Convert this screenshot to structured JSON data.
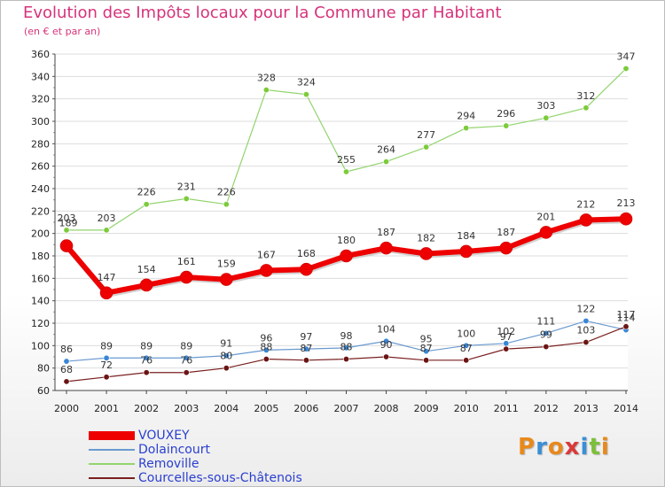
{
  "title": "Evolution des Impôts locaux pour la Commune par Habitant",
  "subtitle": "(en € et par an)",
  "logo": {
    "text": "Proxiti",
    "colors": [
      "#e8891c",
      "#3a8fd6",
      "#e8891c",
      "#d93a3a",
      "#3a8fd6",
      "#7cbf3a",
      "#e8891c"
    ]
  },
  "chart_data": {
    "type": "line",
    "title": "Evolution des Impôts locaux pour la Commune par Habitant",
    "subtitle": "(en € et par an)",
    "xlabel": "",
    "ylabel": "",
    "ylim": [
      60,
      360
    ],
    "yticks": [
      60,
      80,
      100,
      120,
      140,
      160,
      180,
      200,
      220,
      240,
      260,
      280,
      300,
      320,
      340,
      360
    ],
    "x": [
      "2000",
      "2001",
      "2002",
      "2003",
      "2004",
      "2005",
      "2006",
      "2007",
      "2008",
      "2009",
      "2010",
      "2011",
      "2012",
      "2013",
      "2014"
    ],
    "grid": "horizontal",
    "legend": "bottom-left",
    "series": [
      {
        "name": "VOUXEY",
        "color": "#ee0000",
        "values": [
          189,
          147,
          154,
          161,
          159,
          167,
          168,
          180,
          187,
          182,
          184,
          187,
          201,
          212,
          213
        ]
      },
      {
        "name": "Dolaincourt",
        "color": "#6a9ad0",
        "values": [
          86,
          89,
          89,
          89,
          91,
          96,
          97,
          98,
          104,
          95,
          100,
          102,
          111,
          122,
          114
        ]
      },
      {
        "name": "Removille",
        "color": "#92d46e",
        "values": [
          203,
          203,
          226,
          231,
          226,
          328,
          324,
          255,
          264,
          277,
          294,
          296,
          303,
          312,
          347
        ]
      },
      {
        "name": "Courcelles-sous-Châtenois",
        "color": "#7a1f1f",
        "values": [
          68,
          72,
          76,
          76,
          80,
          88,
          87,
          88,
          90,
          87,
          87,
          97,
          99,
          103,
          117
        ]
      }
    ]
  }
}
